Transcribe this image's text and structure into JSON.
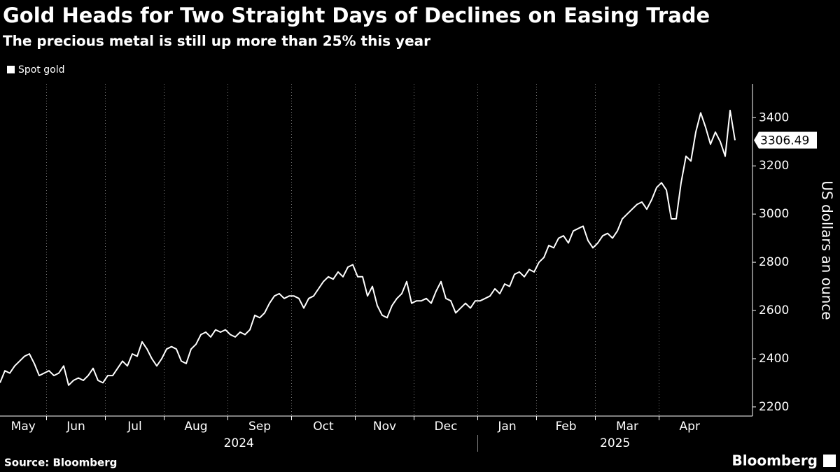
{
  "chart_data": {
    "type": "line",
    "title": "Gold Heads for Two Straight Days of Declines on Easing Trade",
    "subtitle": "The precious metal is still up more than 25% this year",
    "y_label": "US dollars an ounce",
    "source": "Source: Bloomberg",
    "brand": "Bloomberg",
    "years": [
      "2024",
      "2025"
    ],
    "categories": [
      "May",
      null,
      null,
      null,
      null,
      null,
      null,
      null,
      null,
      null,
      "Jun",
      null,
      null,
      null,
      null,
      null,
      null,
      null,
      null,
      null,
      null,
      null,
      "Jul",
      null,
      null,
      null,
      null,
      null,
      null,
      null,
      null,
      null,
      null,
      null,
      "Aug",
      null,
      null,
      null,
      null,
      null,
      null,
      null,
      null,
      null,
      null,
      null,
      null,
      "Sep",
      null,
      null,
      null,
      null,
      null,
      null,
      null,
      null,
      null,
      null,
      null,
      null,
      "Oct",
      null,
      null,
      null,
      null,
      null,
      null,
      null,
      null,
      null,
      null,
      null,
      null,
      "Nov",
      null,
      null,
      null,
      null,
      null,
      null,
      null,
      null,
      null,
      null,
      null,
      "Dec",
      null,
      null,
      null,
      null,
      null,
      null,
      null,
      null,
      null,
      null,
      null,
      null,
      "Jan",
      null,
      null,
      null,
      null,
      null,
      null,
      null,
      null,
      null,
      null,
      null,
      "Feb",
      null,
      null,
      null,
      null,
      null,
      null,
      null,
      null,
      null,
      null,
      null,
      "Mar",
      null,
      null,
      null,
      null,
      null,
      null,
      null,
      null,
      null,
      null,
      null,
      null,
      "Apr",
      null,
      null,
      null,
      null,
      null,
      null,
      null,
      null,
      null,
      null,
      null,
      null,
      null,
      null,
      null
    ],
    "series": [
      {
        "name": "Spot gold",
        "color": "#ffffff",
        "values": [
          2300,
          2350,
          2340,
          2370,
          2390,
          2410,
          2420,
          2380,
          2330,
          2340,
          2350,
          2330,
          2340,
          2370,
          2290,
          2310,
          2320,
          2310,
          2330,
          2360,
          2310,
          2300,
          2330,
          2330,
          2360,
          2390,
          2370,
          2420,
          2410,
          2470,
          2440,
          2400,
          2370,
          2400,
          2440,
          2450,
          2440,
          2390,
          2380,
          2440,
          2460,
          2500,
          2510,
          2490,
          2520,
          2510,
          2520,
          2500,
          2490,
          2510,
          2500,
          2520,
          2580,
          2570,
          2590,
          2630,
          2660,
          2670,
          2650,
          2660,
          2660,
          2650,
          2610,
          2650,
          2660,
          2690,
          2720,
          2740,
          2730,
          2760,
          2740,
          2780,
          2790,
          2740,
          2740,
          2660,
          2700,
          2620,
          2580,
          2570,
          2620,
          2650,
          2670,
          2720,
          2630,
          2640,
          2640,
          2650,
          2630,
          2680,
          2720,
          2650,
          2640,
          2590,
          2610,
          2630,
          2610,
          2640,
          2640,
          2650,
          2660,
          2690,
          2670,
          2710,
          2700,
          2750,
          2760,
          2740,
          2770,
          2760,
          2800,
          2820,
          2870,
          2860,
          2900,
          2910,
          2880,
          2930,
          2940,
          2950,
          2890,
          2860,
          2880,
          2910,
          2920,
          2900,
          2930,
          2980,
          3000,
          3020,
          3040,
          3050,
          3020,
          3060,
          3110,
          3130,
          3100,
          2980,
          2980,
          3130,
          3240,
          3220,
          3340,
          3420,
          3360,
          3290,
          3340,
          3300,
          3240,
          3430,
          3306.49
        ]
      }
    ],
    "ylim": [
      2162,
      3540
    ],
    "yticks": [
      2200,
      2400,
      2600,
      2800,
      3000,
      3200,
      3400
    ],
    "x_grid": true
  }
}
